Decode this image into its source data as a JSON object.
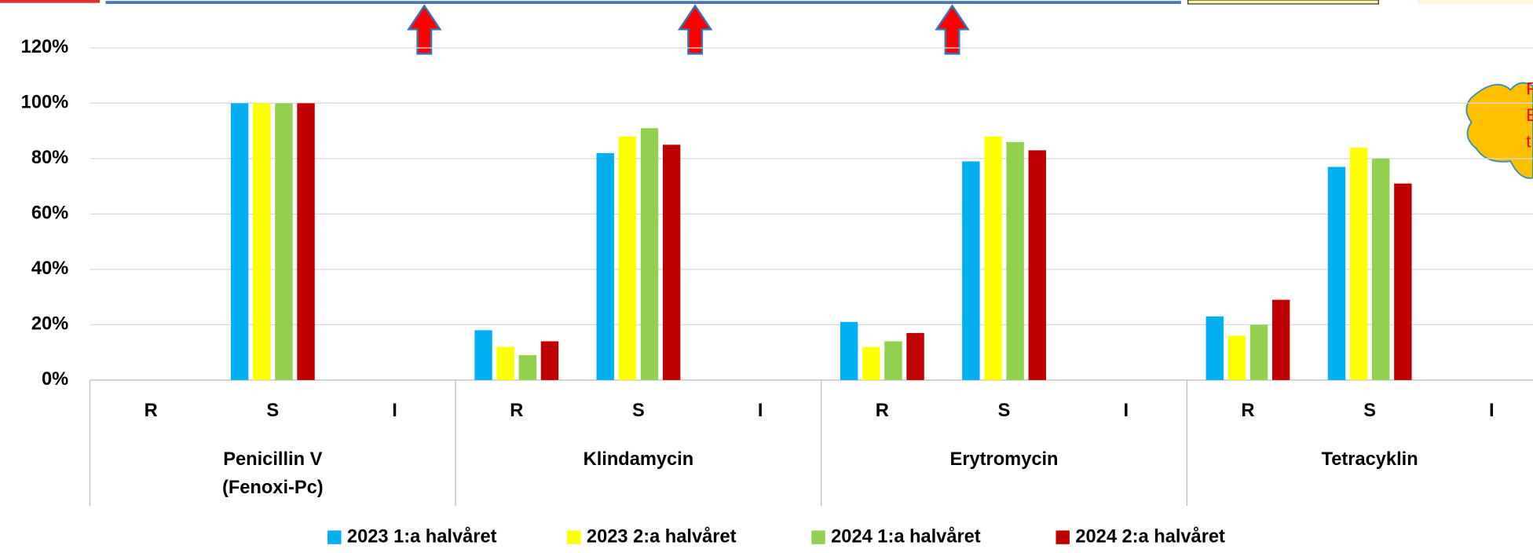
{
  "chart_data": {
    "type": "bar",
    "categories": [
      "R",
      "S",
      "I",
      "R",
      "S",
      "I",
      "R",
      "S",
      "I",
      "R",
      "S",
      "I"
    ],
    "groups": [
      [
        "Penicillin V",
        "(Fenoxi-Pc)"
      ],
      [
        "Klindamycin"
      ],
      [
        "Erytromycin"
      ],
      [
        "Tetracyklin"
      ]
    ],
    "series": [
      {
        "name": "2023 1:a halvåret",
        "color": "#00b0f0",
        "values": [
          null,
          100,
          null,
          18,
          82,
          null,
          21,
          79,
          null,
          23,
          77,
          null
        ]
      },
      {
        "name": "2023 2:a halvåret",
        "color": "#ffff00",
        "values": [
          null,
          100,
          null,
          12,
          88,
          null,
          12,
          88,
          null,
          16,
          84,
          null
        ]
      },
      {
        "name": "2024 1:a halvåret",
        "color": "#92d050",
        "values": [
          null,
          100,
          null,
          9,
          91,
          null,
          14,
          86,
          null,
          20,
          80,
          null
        ]
      },
      {
        "name": "2024 2:a halvåret",
        "color": "#c00000",
        "values": [
          null,
          100,
          null,
          14,
          85,
          null,
          17,
          83,
          null,
          29,
          71,
          null
        ]
      }
    ],
    "ylim": [
      0,
      120
    ],
    "yticks": [
      {
        "value": 0,
        "label": "0%"
      },
      {
        "value": 20,
        "label": "20%"
      },
      {
        "value": 40,
        "label": "40%"
      },
      {
        "value": 60,
        "label": "60%"
      },
      {
        "value": 80,
        "label": "80%"
      },
      {
        "value": 100,
        "label": "100%"
      },
      {
        "value": 120,
        "label": "120%"
      }
    ],
    "grid": true,
    "legend": "bottom",
    "callout_lines": [
      "F",
      "E",
      "t"
    ]
  }
}
